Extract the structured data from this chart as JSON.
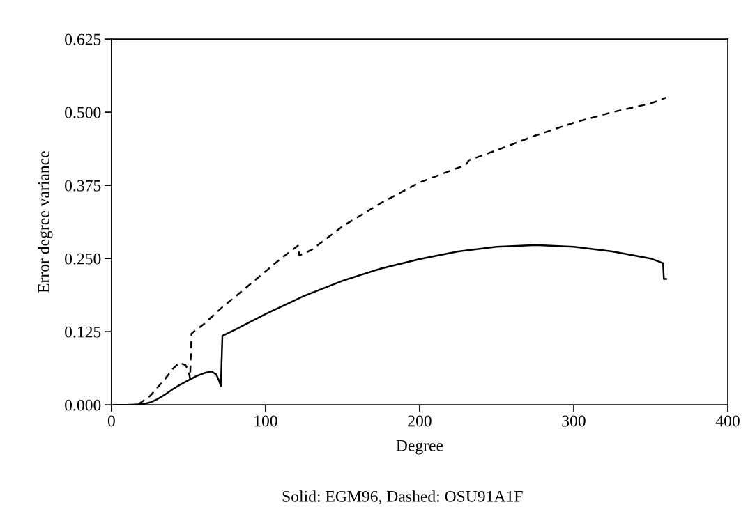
{
  "chart_data": {
    "type": "line",
    "xlabel": "Degree",
    "ylabel": "Error degree variance",
    "annotations": [
      "Solid: EGM96, Dashed: OSU91A1F"
    ],
    "xlim": [
      0,
      400
    ],
    "xticks": [
      0,
      100,
      200,
      300,
      400
    ],
    "ylim": [
      0,
      0.625
    ],
    "yticks": [
      {
        "value": 0,
        "label": "0.000"
      },
      {
        "value": 0.125,
        "label": "0.125"
      },
      {
        "value": 0.25,
        "label": "0.250"
      },
      {
        "value": 0.375,
        "label": "0.375"
      },
      {
        "value": 0.5,
        "label": "0.500"
      },
      {
        "value": 0.625,
        "label": "0.625"
      }
    ],
    "grid": false,
    "marker": "none",
    "series": [
      {
        "color": "#000000",
        "line_style": "solid",
        "x": [
          2,
          10,
          20,
          25,
          30,
          35,
          40,
          45,
          50,
          55,
          60,
          65,
          68,
          70,
          71,
          72,
          80,
          100,
          125,
          150,
          175,
          200,
          225,
          250,
          275,
          300,
          325,
          350,
          358,
          358.5,
          360
        ],
        "values": [
          0,
          0,
          0.001,
          0.004,
          0.01,
          0.018,
          0.027,
          0.035,
          0.042,
          0.049,
          0.054,
          0.057,
          0.052,
          0.04,
          0.032,
          0.118,
          0.128,
          0.155,
          0.186,
          0.212,
          0.233,
          0.249,
          0.262,
          0.27,
          0.273,
          0.27,
          0.262,
          0.25,
          0.242,
          0.215,
          0.215
        ]
      },
      {
        "color": "#000000",
        "line_style": "dashed",
        "x": [
          2,
          17,
          25,
          30,
          35,
          40,
          44,
          48,
          50,
          51,
          52,
          55,
          60,
          72,
          85,
          100,
          110,
          121,
          122,
          130,
          150,
          175,
          200,
          225,
          230,
          232,
          250,
          275,
          300,
          325,
          350,
          360
        ],
        "values": [
          0,
          0,
          0.015,
          0.03,
          0.045,
          0.062,
          0.072,
          0.068,
          0.059,
          0.045,
          0.122,
          0.128,
          0.138,
          0.167,
          0.195,
          0.228,
          0.25,
          0.272,
          0.255,
          0.265,
          0.305,
          0.345,
          0.38,
          0.405,
          0.41,
          0.418,
          0.435,
          0.46,
          0.482,
          0.5,
          0.515,
          0.525
        ]
      }
    ]
  }
}
